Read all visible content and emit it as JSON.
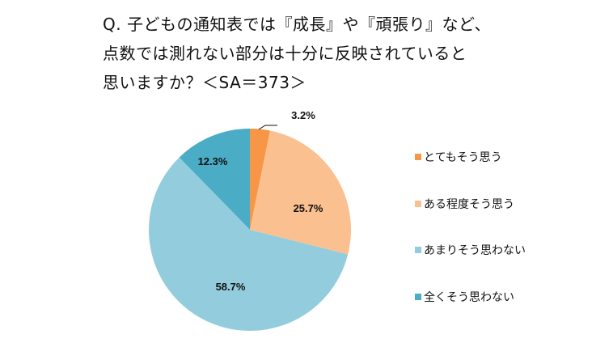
{
  "title": {
    "line1": "Q. 子どもの通知表では『成長』や『頑張り』など、",
    "line2": "点数では測れない部分は十分に反映されていると",
    "line3": "思いますか？＜SA＝373＞"
  },
  "chart_data": {
    "type": "pie",
    "title": "Q. 子どもの通知表では『成長』や『頑張り』など、点数では測れない部分は十分に反映されていると思いますか？＜SA＝373＞",
    "categories": [
      "とてもそう思う",
      "ある程度そう思う",
      "あまりそう思わない",
      "全くそう思わない"
    ],
    "values": [
      3.2,
      25.7,
      58.7,
      12.3
    ],
    "labels": [
      "3.2%",
      "25.7%",
      "58.7%",
      "12.3%"
    ],
    "colors": [
      "#F79646",
      "#FAC090",
      "#93CDDD",
      "#4BACC6"
    ],
    "legend_position": "right",
    "start_angle": "12 o'clock, clockwise"
  },
  "legend": [
    {
      "label": "とてもそう思う",
      "color": "#F79646"
    },
    {
      "label": "ある程度そう思う",
      "color": "#FAC090"
    },
    {
      "label": "あまりそう思わない",
      "color": "#93CDDD"
    },
    {
      "label": "全くそう思わない",
      "color": "#4BACC6"
    }
  ]
}
